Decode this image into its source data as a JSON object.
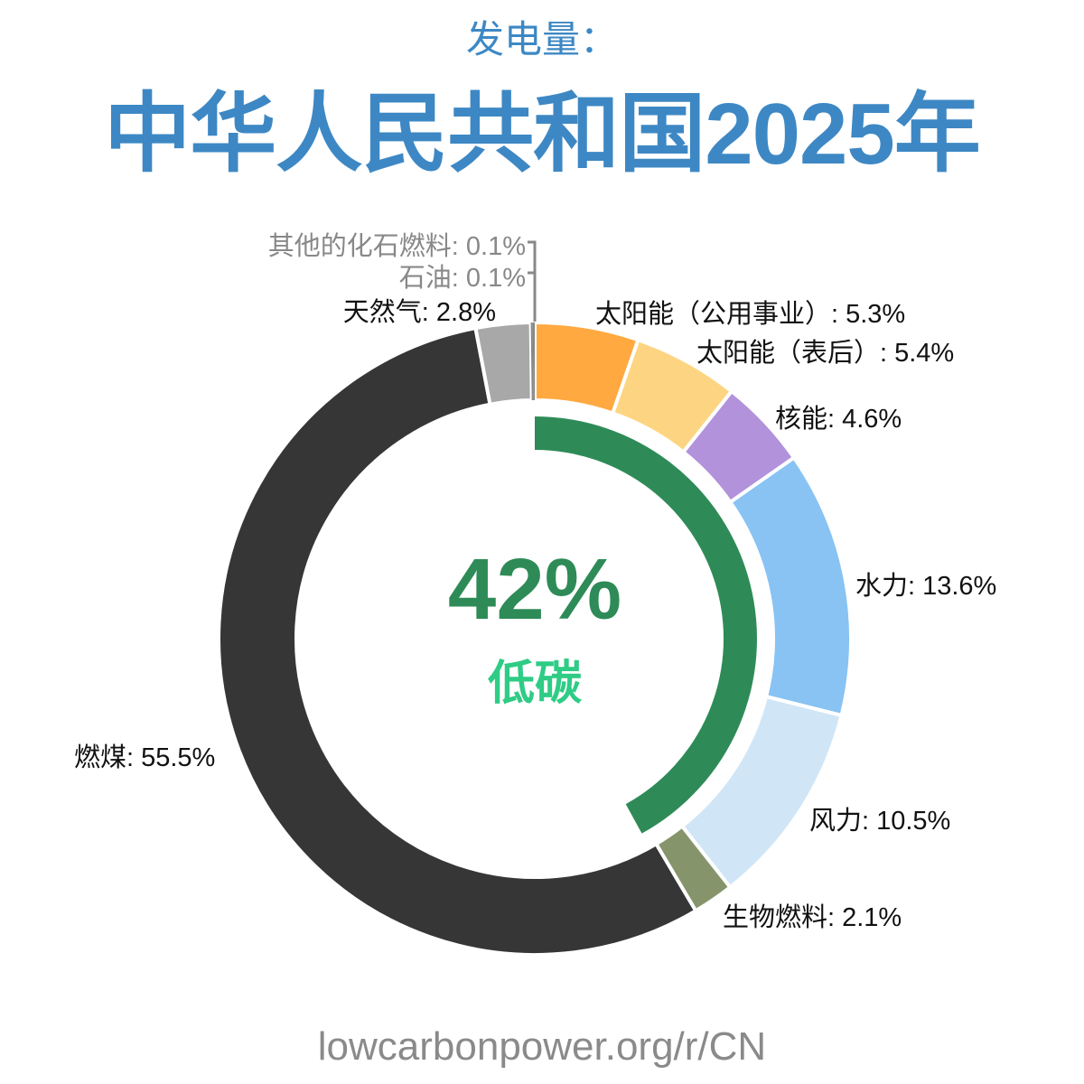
{
  "header": {
    "subtitle": "发电量：",
    "title": "中华人民共和国2025年"
  },
  "center": {
    "value": "42%",
    "label": "低碳"
  },
  "footer": {
    "source": "lowcarbonpower.org/r/CN"
  },
  "chart_data": {
    "type": "pie",
    "subtype": "donut",
    "title": "中华人民共和国2025年",
    "subtitle": "发电量：",
    "start": "top, clockwise",
    "slices": [
      {
        "name": "太阳能（公用事业）",
        "value": 5.3,
        "label": "太阳能（公用事业）: 5.3%",
        "color": "#ffa940"
      },
      {
        "name": "太阳能（表后）",
        "value": 5.4,
        "label": "太阳能（表后）: 5.4%",
        "color": "#fdd582"
      },
      {
        "name": "核能",
        "value": 4.6,
        "label": "核能: 4.6%",
        "color": "#b292db"
      },
      {
        "name": "水力",
        "value": 13.6,
        "label": "水力: 13.6%",
        "color": "#88c3f3"
      },
      {
        "name": "风力",
        "value": 10.5,
        "label": "风力: 10.5%",
        "color": "#d0e6f7"
      },
      {
        "name": "生物燃料",
        "value": 2.1,
        "label": "生物燃料: 2.1%",
        "color": "#86946c"
      },
      {
        "name": "燃煤",
        "value": 55.5,
        "label": "燃煤: 55.5%",
        "color": "#363636"
      },
      {
        "name": "天然气",
        "value": 2.8,
        "label": "天然气: 2.8%",
        "color": "#a8a8a8"
      },
      {
        "name": "石油",
        "value": 0.1,
        "label": "石油: 0.1%",
        "color": "#888888"
      },
      {
        "name": "其他的化石燃料",
        "value": 0.1,
        "label": "其他的化石燃料: 0.1%",
        "color": "#888888"
      }
    ],
    "low_carbon_ring": {
      "value": 42,
      "label": "低碳",
      "color": "#2e8b57"
    }
  },
  "labels": {
    "solar_utility": "太阳能（公用事业）: 5.3%",
    "solar_btm": "太阳能（表后）: 5.4%",
    "nuclear": "核能: 4.6%",
    "hydro": "水力: 13.6%",
    "wind": "风力: 10.5%",
    "bio": "生物燃料: 2.1%",
    "coal": "燃煤: 55.5%",
    "gas": "天然气: 2.8%",
    "oil": "石油: 0.1%",
    "other_fossil": "其他的化石燃料: 0.1%"
  }
}
